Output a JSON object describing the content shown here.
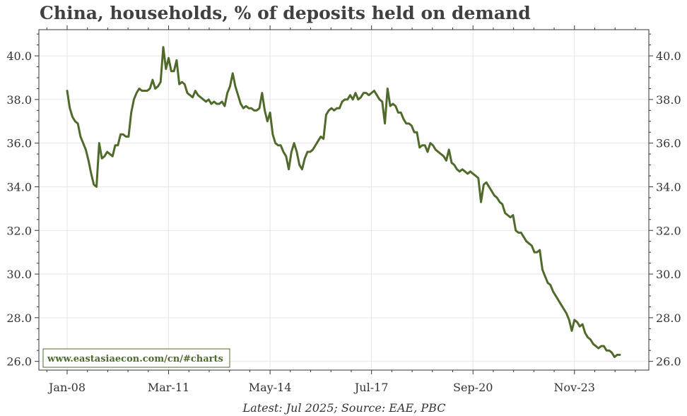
{
  "title": "China, households, % of deposits held on demand",
  "source_note": "Latest: Jul 2025; Source: EAE, PBC",
  "watermark": "www.eastasiaecon.com/cn/#charts",
  "colors": {
    "line": "#4f6a2a",
    "grid": "#e6e6e6",
    "axis": "#333333",
    "watermark_border": "#4d6b2e"
  },
  "chart_data": {
    "type": "line",
    "title": "China, households, % of deposits held on demand",
    "xlabel": "",
    "ylabel": "",
    "ylim": [
      25.6,
      41.2
    ],
    "y_ticks": [
      26.0,
      28.0,
      30.0,
      32.0,
      34.0,
      36.0,
      38.0,
      40.0
    ],
    "y_tick_labels": [
      "26.0",
      "28.0",
      "30.0",
      "32.0",
      "34.0",
      "36.0",
      "38.0",
      "40.0"
    ],
    "x_tick_labels": [
      "Jan-08",
      "Mar-11",
      "May-14",
      "Jul-17",
      "Sep-20",
      "Nov-23"
    ],
    "grid": true,
    "series": [
      {
        "values": [
          38.4,
          37.6,
          37.2,
          37.0,
          36.9,
          36.3,
          36.0,
          35.7,
          35.2,
          34.6,
          34.1,
          34.0,
          36.0,
          35.3,
          35.4,
          35.6,
          35.5,
          35.4,
          35.9,
          35.9,
          36.4,
          36.4,
          36.3,
          36.3,
          37.4,
          38.0,
          38.3,
          38.5,
          38.4,
          38.4,
          38.4,
          38.5,
          38.9,
          38.5,
          38.6,
          38.8,
          40.4,
          39.4,
          39.9,
          39.3,
          39.3,
          39.8,
          38.7,
          38.8,
          38.7,
          38.3,
          38.2,
          38.1,
          38.4,
          38.2,
          38.1,
          38.0,
          37.9,
          38.0,
          37.8,
          37.9,
          37.8,
          37.8,
          37.9,
          37.7,
          38.3,
          38.6,
          39.2,
          38.6,
          38.2,
          37.8,
          37.6,
          37.7,
          37.6,
          37.6,
          37.5,
          37.5,
          37.6,
          38.3,
          37.5,
          37.0,
          37.4,
          36.4,
          36.0,
          35.9,
          35.9,
          35.6,
          35.4,
          34.8,
          35.6,
          36.0,
          35.6,
          35.0,
          34.8,
          35.3,
          35.6,
          35.6,
          35.7,
          35.9,
          36.1,
          36.3,
          36.2,
          37.3,
          37.5,
          37.6,
          37.5,
          37.6,
          37.6,
          37.9,
          38.0,
          38.0,
          38.2,
          38.0,
          38.3,
          38.0,
          38.1,
          38.3,
          38.3,
          38.2,
          38.3,
          38.4,
          38.2,
          38.0,
          37.9,
          36.9,
          38.5,
          37.7,
          37.8,
          37.7,
          37.4,
          37.4,
          37.1,
          36.9,
          36.9,
          36.8,
          36.5,
          36.5,
          35.8,
          35.9,
          35.9,
          35.6,
          36.0,
          35.9,
          35.7,
          35.6,
          35.5,
          35.4,
          35.2,
          35.7,
          35.1,
          35.0,
          34.8,
          34.7,
          34.8,
          34.7,
          34.6,
          34.7,
          34.6,
          34.5,
          34.4,
          33.3,
          34.1,
          34.2,
          34.0,
          33.8,
          33.6,
          33.5,
          33.3,
          33.2,
          32.8,
          32.7,
          32.6,
          32.7,
          32.0,
          31.9,
          31.9,
          31.7,
          31.5,
          31.4,
          31.3,
          31.0,
          31.0,
          31.1,
          30.2,
          29.9,
          29.6,
          29.5,
          29.2,
          29.0,
          28.8,
          28.6,
          28.4,
          28.2,
          27.9,
          27.4,
          27.9,
          27.8,
          27.6,
          27.7,
          27.3,
          27.1,
          27.0,
          26.8,
          26.7,
          26.6,
          26.7,
          26.7,
          26.5,
          26.5,
          26.4,
          26.2,
          26.3,
          26.3
        ]
      }
    ]
  }
}
